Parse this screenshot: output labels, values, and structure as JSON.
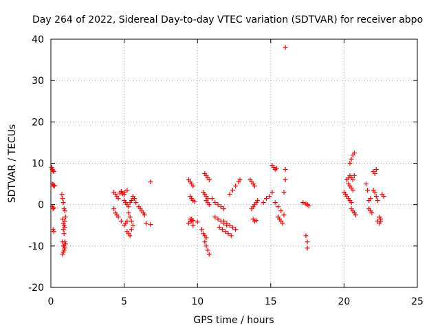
{
  "chart_data": {
    "type": "scatter",
    "title": "Day 264 of 2022, Sidereal Day-to-day VTEC variation (SDTVAR) for receiver abpo",
    "xlabel": "GPS time / hours",
    "ylabel": "SDTVAR / TECUs",
    "xlim": [
      0,
      25
    ],
    "ylim": [
      -20,
      40
    ],
    "xticks": [
      0,
      5,
      10,
      15,
      20,
      25
    ],
    "yticks": [
      -20,
      -10,
      0,
      10,
      20,
      30,
      40
    ],
    "grid": true,
    "marker": "plus",
    "color": "#ff0000",
    "series": [
      {
        "name": "SDTVAR",
        "x": [
          0.05,
          0.1,
          0.15,
          0.2,
          0.1,
          0.15,
          0.2,
          0.25,
          0.1,
          0.15,
          0.2,
          0.15,
          0.2,
          0.75,
          0.8,
          0.85,
          0.9,
          0.95,
          0.8,
          0.85,
          0.9,
          0.95,
          1.0,
          0.85,
          0.9,
          0.95,
          0.8,
          0.85,
          0.9,
          0.95,
          1.0,
          0.8,
          0.85,
          0.9,
          0.95,
          4.3,
          4.4,
          4.5,
          4.6,
          4.7,
          4.8,
          4.9,
          5.0,
          4.3,
          4.4,
          4.5,
          4.6,
          4.8,
          5.0,
          5.1,
          5.2,
          5.0,
          5.1,
          5.2,
          5.3,
          5.4,
          5.5,
          5.6,
          5.3,
          5.4,
          5.5,
          5.6,
          5.2,
          5.3,
          5.4,
          5.5,
          5.0,
          5.2,
          5.6,
          5.7,
          5.8,
          6.0,
          6.1,
          6.2,
          6.3,
          6.4,
          6.5,
          6.8,
          6.8,
          9.4,
          9.5,
          9.6,
          9.7,
          9.5,
          9.6,
          9.7,
          9.8,
          9.5,
          9.6,
          9.7,
          9.4,
          9.5,
          9.6,
          9.7,
          10.0,
          10.3,
          10.4,
          10.5,
          10.6,
          10.5,
          10.6,
          10.7,
          10.8,
          10.5,
          10.6,
          10.7,
          10.8,
          10.6,
          10.7,
          10.8,
          10.4,
          10.5,
          10.6,
          10.7,
          11.0,
          11.2,
          11.4,
          11.6,
          11.8,
          11.2,
          11.4,
          11.6,
          11.8,
          12.0,
          11.5,
          11.7,
          11.9,
          12.1,
          12.3,
          11.8,
          12.0,
          12.2,
          12.4,
          12.6,
          12.2,
          12.4,
          12.6,
          12.8,
          12.9,
          13.6,
          13.7,
          13.8,
          13.9,
          13.7,
          13.8,
          13.9,
          14.0,
          14.1,
          13.8,
          13.9,
          14.0,
          14.5,
          14.7,
          14.9,
          15.1,
          15.1,
          15.2,
          15.3,
          15.4,
          15.3,
          15.5,
          15.7,
          15.9,
          15.5,
          15.6,
          15.7,
          15.8,
          15.9,
          16.0,
          16.0,
          16.0,
          17.2,
          17.4,
          17.5,
          17.6,
          17.4,
          17.5,
          17.5,
          20.0,
          20.1,
          20.2,
          20.3,
          20.4,
          20.5,
          20.2,
          20.3,
          20.4,
          20.5,
          20.6,
          20.4,
          20.5,
          20.6,
          20.7,
          20.5,
          20.6,
          20.7,
          20.8,
          20.3,
          20.4,
          20.5,
          20.6,
          20.7,
          21.5,
          21.6,
          21.7,
          21.8,
          21.7,
          21.8,
          21.9,
          22.0,
          22.1,
          22.2,
          22.0,
          22.1,
          22.2,
          22.3,
          22.4,
          22.5,
          22.3,
          22.4,
          22.5,
          22.6,
          22.7
        ],
        "y": [
          9.0,
          8.5,
          8.2,
          8.0,
          5.0,
          4.8,
          4.5,
          4.6,
          -0.5,
          -1.0,
          -0.8,
          -6.0,
          -6.5,
          2.5,
          1.5,
          0.5,
          -1.0,
          -1.5,
          -3.5,
          -4.5,
          -5.0,
          -4.0,
          -3.0,
          -6.0,
          -7.0,
          -5.5,
          -9.0,
          -10.0,
          -11.0,
          -10.5,
          -9.5,
          -12.0,
          -11.5,
          -10.0,
          -9.0,
          3.0,
          2.5,
          2.0,
          1.5,
          2.8,
          3.2,
          2.6,
          3.0,
          -1.0,
          -2.0,
          -2.5,
          -3.0,
          -4.0,
          -5.0,
          -4.5,
          -4.0,
          1.0,
          0.5,
          0.0,
          -0.5,
          0.5,
          1.0,
          1.5,
          -2.0,
          -3.0,
          -4.0,
          -5.0,
          -6.5,
          -7.0,
          -7.5,
          -6.0,
          2.5,
          3.5,
          2.0,
          1.5,
          0.5,
          -0.5,
          -1.0,
          -1.5,
          -2.0,
          -2.5,
          -4.5,
          5.5,
          -4.8,
          6.0,
          5.5,
          5.0,
          4.5,
          2.0,
          1.5,
          1.0,
          0.8,
          -3.5,
          -4.0,
          -3.8,
          -4.5,
          -4.0,
          -3.5,
          -5.0,
          -4.2,
          -6.0,
          -7.0,
          -7.5,
          -8.0,
          -9.0,
          -10.0,
          -11.0,
          -12.0,
          7.5,
          7.0,
          6.5,
          6.0,
          1.0,
          0.5,
          0.0,
          3.0,
          2.5,
          2.0,
          1.5,
          1.5,
          0.5,
          0.0,
          -0.5,
          -1.0,
          -3.0,
          -3.5,
          -4.0,
          -4.5,
          -5.0,
          -5.5,
          -6.0,
          -6.5,
          -7.0,
          -7.5,
          -4.0,
          -4.5,
          -5.0,
          -5.5,
          -6.0,
          2.5,
          3.5,
          4.5,
          5.5,
          6.0,
          6.0,
          5.5,
          5.0,
          4.5,
          -1.0,
          -0.5,
          0.0,
          0.5,
          1.0,
          -3.5,
          -4.0,
          -3.8,
          0.5,
          1.5,
          2.0,
          3.0,
          9.5,
          9.0,
          8.5,
          8.8,
          0.5,
          -0.5,
          -1.5,
          -2.5,
          -3.0,
          -3.5,
          -4.0,
          -4.5,
          3.0,
          6.0,
          8.5,
          38.0,
          0.5,
          0.2,
          0.0,
          -0.3,
          -7.5,
          -9.0,
          -10.5,
          3.0,
          2.5,
          2.0,
          1.5,
          1.0,
          0.5,
          6.0,
          6.5,
          7.0,
          6.5,
          6.0,
          10.0,
          11.0,
          12.0,
          12.5,
          -1.0,
          -1.5,
          -2.0,
          -2.5,
          5.0,
          4.5,
          4.0,
          3.5,
          7.0,
          5.0,
          3.5,
          1.0,
          1.5,
          -1.0,
          -1.5,
          -2.0,
          8.0,
          7.5,
          8.5,
          3.5,
          3.0,
          2.0,
          1.0,
          -3.0,
          -3.5,
          -4.0,
          -4.5,
          -4.0,
          2.5,
          2.0
        ]
      }
    ]
  }
}
